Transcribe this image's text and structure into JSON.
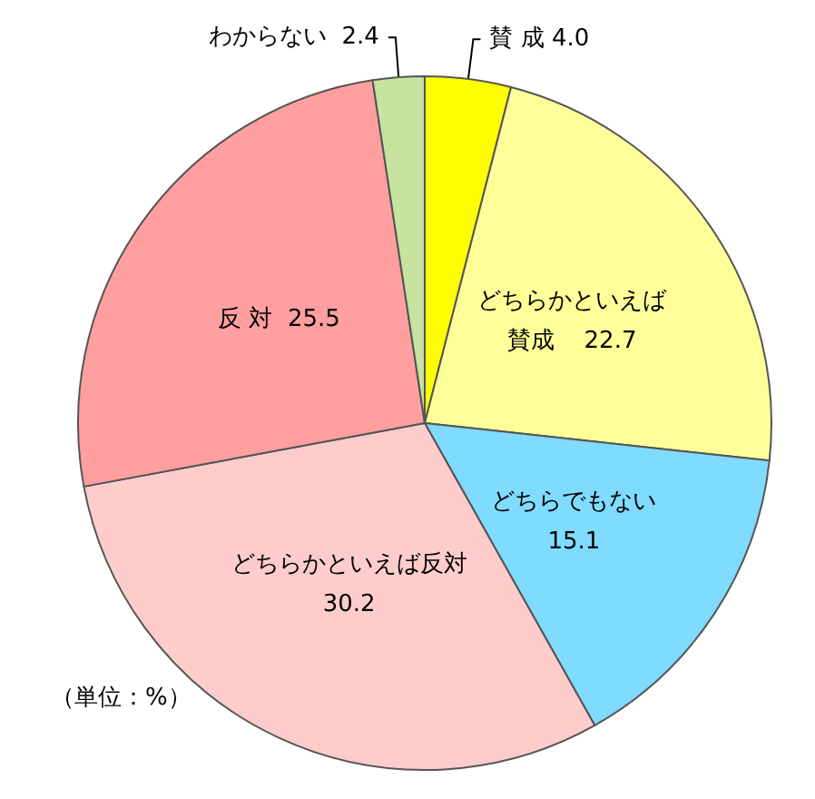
{
  "chart_data": {
    "type": "pie",
    "categories": [
      "賛 成",
      "どちらかといえば賛成",
      "どちらでもない",
      "どちらかといえば反対",
      "反 対",
      "わからない"
    ],
    "values": [
      4.0,
      22.7,
      15.1,
      30.2,
      25.5,
      2.4
    ],
    "value_labels": [
      "4.0",
      "22.7",
      "15.1",
      "30.2",
      "25.5",
      "2.4"
    ],
    "colors": [
      "#ffff00",
      "#ffff99",
      "#7fdbff",
      "#ffcccc",
      "#ff9f9f",
      "#c6e39f"
    ],
    "annotations": [
      "（単位：%）"
    ],
    "legend": false
  }
}
